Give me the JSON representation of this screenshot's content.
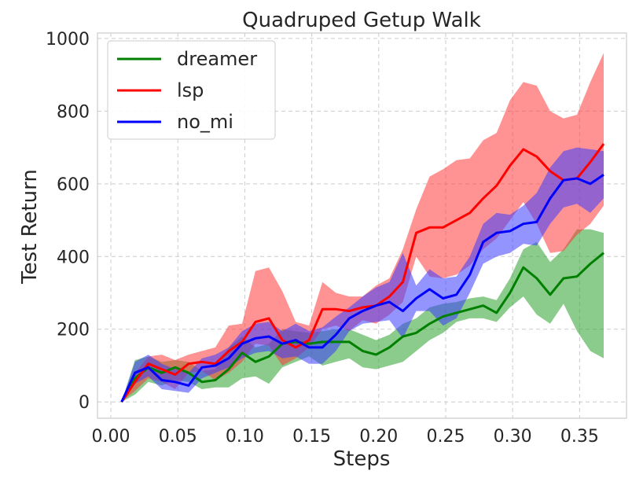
{
  "chart_data": {
    "type": "line",
    "title": "Quadruped Getup Walk",
    "xlabel": "Steps",
    "ylabel": "Test Return",
    "xlim": [
      -0.01,
      0.385
    ],
    "ylim": [
      -45,
      1015
    ],
    "xticks": [
      0.0,
      0.05,
      0.1,
      0.15,
      0.2,
      0.25,
      0.3,
      0.35
    ],
    "xtick_labels": [
      "0.00",
      "0.05",
      "0.10",
      "0.15",
      "0.20",
      "0.25",
      "0.30",
      "0.35"
    ],
    "yticks": [
      0,
      200,
      400,
      600,
      800,
      1000
    ],
    "ytick_labels": [
      "0",
      "200",
      "400",
      "600",
      "800",
      "1000"
    ],
    "grid": true,
    "legend_position": "top-left",
    "x": [
      0.008,
      0.018,
      0.028,
      0.038,
      0.048,
      0.058,
      0.068,
      0.078,
      0.088,
      0.098,
      0.108,
      0.118,
      0.128,
      0.138,
      0.148,
      0.158,
      0.168,
      0.178,
      0.188,
      0.198,
      0.208,
      0.218,
      0.228,
      0.238,
      0.248,
      0.258,
      0.268,
      0.278,
      0.288,
      0.298,
      0.308,
      0.318,
      0.328,
      0.338,
      0.348,
      0.358,
      0.368
    ],
    "series": [
      {
        "name": "dreamer",
        "color": "#008000",
        "fill": "#2ca02c",
        "mean": [
          0,
          65,
          95,
          80,
          95,
          80,
          55,
          60,
          90,
          135,
          110,
          125,
          160,
          165,
          160,
          165,
          165,
          165,
          140,
          130,
          150,
          180,
          190,
          215,
          235,
          245,
          255,
          265,
          245,
          300,
          370,
          340,
          295,
          340,
          345,
          380,
          410
        ],
        "upper": [
          0,
          115,
          125,
          110,
          115,
          110,
          85,
          90,
          150,
          180,
          150,
          160,
          200,
          195,
          190,
          195,
          200,
          200,
          185,
          170,
          185,
          215,
          230,
          260,
          270,
          275,
          285,
          290,
          280,
          340,
          420,
          440,
          385,
          420,
          475,
          475,
          465
        ],
        "lower": [
          0,
          20,
          55,
          45,
          60,
          55,
          35,
          40,
          40,
          65,
          70,
          50,
          95,
          110,
          125,
          100,
          110,
          120,
          95,
          90,
          100,
          110,
          140,
          170,
          190,
          220,
          230,
          230,
          220,
          260,
          290,
          240,
          215,
          270,
          195,
          140,
          120
        ]
      },
      {
        "name": "lsp",
        "color": "#ff0000",
        "fill": "#ff3b3b",
        "mean": [
          0,
          55,
          105,
          90,
          75,
          105,
          110,
          105,
          140,
          165,
          220,
          230,
          170,
          150,
          170,
          255,
          255,
          250,
          260,
          265,
          290,
          330,
          465,
          480,
          480,
          500,
          520,
          560,
          595,
          650,
          695,
          675,
          635,
          610,
          615,
          660,
          710
        ],
        "upper": [
          0,
          80,
          125,
          130,
          115,
          130,
          140,
          150,
          210,
          215,
          360,
          370,
          305,
          220,
          210,
          330,
          300,
          290,
          290,
          320,
          340,
          420,
          530,
          620,
          640,
          665,
          670,
          720,
          740,
          830,
          880,
          870,
          800,
          780,
          790,
          880,
          960
        ],
        "lower": [
          0,
          30,
          65,
          55,
          35,
          80,
          85,
          60,
          80,
          110,
          160,
          155,
          100,
          120,
          150,
          200,
          210,
          195,
          225,
          215,
          240,
          275,
          400,
          345,
          340,
          350,
          375,
          420,
          450,
          500,
          550,
          490,
          410,
          415,
          460,
          490,
          540
        ]
      },
      {
        "name": "no_mi",
        "color": "#0000ff",
        "fill": "#3c3cff",
        "mean": [
          0,
          80,
          95,
          60,
          55,
          45,
          95,
          100,
          120,
          160,
          175,
          180,
          160,
          170,
          150,
          150,
          185,
          230,
          250,
          265,
          275,
          250,
          285,
          310,
          285,
          295,
          350,
          440,
          465,
          470,
          490,
          495,
          560,
          610,
          615,
          600,
          625
        ],
        "upper": [
          0,
          110,
          130,
          105,
          90,
          80,
          120,
          130,
          150,
          195,
          215,
          220,
          195,
          215,
          195,
          205,
          235,
          260,
          290,
          315,
          330,
          410,
          320,
          365,
          340,
          345,
          400,
          490,
          520,
          515,
          540,
          575,
          645,
          690,
          700,
          695,
          690
        ],
        "lower": [
          0,
          50,
          70,
          35,
          30,
          25,
          65,
          80,
          95,
          120,
          135,
          140,
          120,
          125,
          105,
          105,
          140,
          195,
          215,
          220,
          225,
          175,
          250,
          250,
          210,
          230,
          300,
          380,
          400,
          410,
          435,
          430,
          490,
          535,
          545,
          520,
          560
        ]
      }
    ]
  }
}
